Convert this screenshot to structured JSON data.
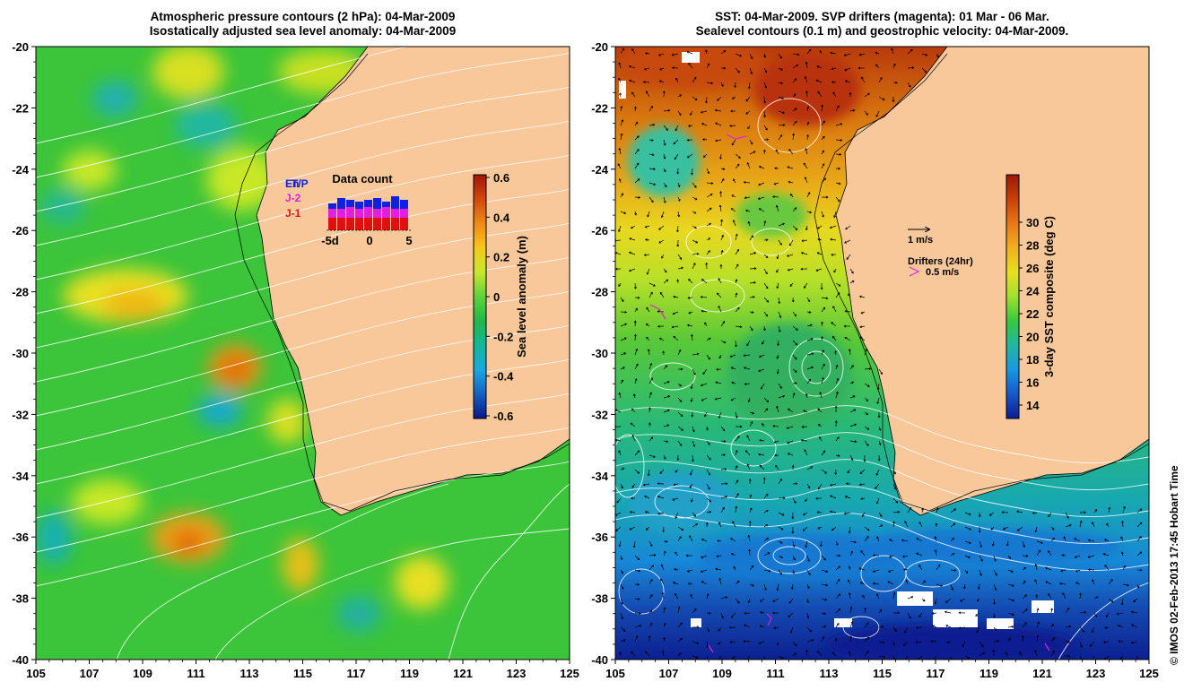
{
  "left_panel": {
    "title_line1": "Atmospheric pressure contours (2 hPa): 04-Mar-2009",
    "title_line2": "Isostatically adjusted sea level anomaly: 04-Mar-2009",
    "colorbar": {
      "label": "Sea level anomaly (m)",
      "ticks": [
        "0.6",
        "0.4",
        "0.2",
        "0",
        "-0.2",
        "-0.4",
        "-0.6"
      ],
      "colors": [
        "#a0150a",
        "#d4470c",
        "#f08a10",
        "#f5c81a",
        "#c8e82a",
        "#5fd23a",
        "#1fb84a",
        "#10b89a",
        "#18a8e0",
        "#1860c0",
        "#0a1888"
      ]
    },
    "data_count": {
      "title": "Data count",
      "legend": [
        {
          "label": "En",
          "color": "#1020e0"
        },
        {
          "label": "T/P",
          "color": "#1020e0"
        },
        {
          "label": "J-2",
          "color": "#e020e0"
        },
        {
          "label": "J-1",
          "color": "#e01010"
        }
      ],
      "x_ticks": [
        "-5d",
        "0",
        "5"
      ]
    }
  },
  "right_panel": {
    "title_line1": "SST: 04-Mar-2009. SVP drifters (magenta): 01 Mar - 06 Mar.",
    "title_line2": "Sealevel contours (0.1 m) and geostrophic velocity: 04-Mar-2009.",
    "colorbar": {
      "label": "3-day SST composite (deg C)",
      "ticks": [
        "30",
        "28",
        "26",
        "24",
        "22",
        "20",
        "18",
        "16",
        "14"
      ],
      "colors": [
        "#9a1808",
        "#c8400a",
        "#e87818",
        "#f0b020",
        "#e8e020",
        "#a0e030",
        "#38c840",
        "#20b8a0",
        "#1898e0",
        "#1858c8",
        "#0c1c90"
      ]
    },
    "velocity_scale_label": "1 m/s",
    "drifters_label": "Drifters (24hr)",
    "drifter_scale_label": "0.5 m/s"
  },
  "axes": {
    "x_ticks": [
      "105",
      "107",
      "109",
      "111",
      "113",
      "115",
      "117",
      "119",
      "121",
      "123",
      "125"
    ],
    "y_ticks": [
      "-20",
      "-22",
      "-24",
      "-26",
      "-28",
      "-30",
      "-32",
      "-34",
      "-36",
      "-38",
      "-40"
    ]
  },
  "colors": {
    "land": "#f9c89a",
    "ocean_left_base": "#3cc43a",
    "contour": "#ffffff"
  },
  "credit": "© IMOS 02-Feb-2013 17:45 Hobart Time"
}
